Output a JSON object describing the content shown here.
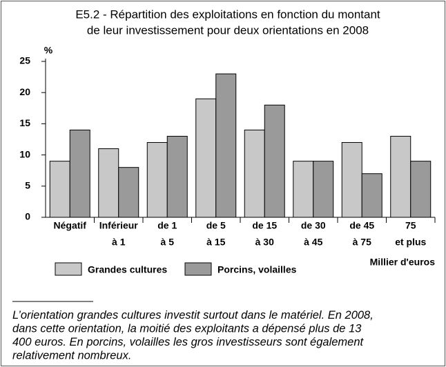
{
  "chart_data": {
    "type": "bar",
    "title": [
      "E5.2 - Répartition des exploitations en fonction du montant",
      "de leur investissement pour deux orientations en 2008"
    ],
    "y_label": "%",
    "x_label": "Millier d'euros",
    "categories": [
      [
        "Négatif"
      ],
      [
        "Inférieur",
        "à 1"
      ],
      [
        "de 1",
        "à 5"
      ],
      [
        "de 5",
        "à 15"
      ],
      [
        "de 15",
        "à 30"
      ],
      [
        "de 30",
        "à 45"
      ],
      [
        "de 45",
        "à 75"
      ],
      [
        "75",
        "et plus"
      ]
    ],
    "series": [
      {
        "name": "Grandes cultures",
        "color": "#c8c8c8",
        "values": [
          9,
          11,
          12,
          19,
          14,
          9,
          12,
          13
        ]
      },
      {
        "name": "Porcins, volailles",
        "color": "#9a9a9a",
        "values": [
          14,
          8,
          13,
          23,
          18,
          9,
          7,
          9
        ]
      }
    ],
    "ylim": [
      0,
      25
    ],
    "yticks": [
      0,
      5,
      10,
      15,
      20,
      25
    ],
    "grid": false
  },
  "footnote": [
    "L’orientation grandes cultures investit surtout dans le matériel. En 2008,",
    "dans cette orientation, la moitié des exploitants a dépensé plus de 13",
    "400 euros. En porcins, volailles les gros investisseurs sont également",
    "relativement nombreux."
  ]
}
